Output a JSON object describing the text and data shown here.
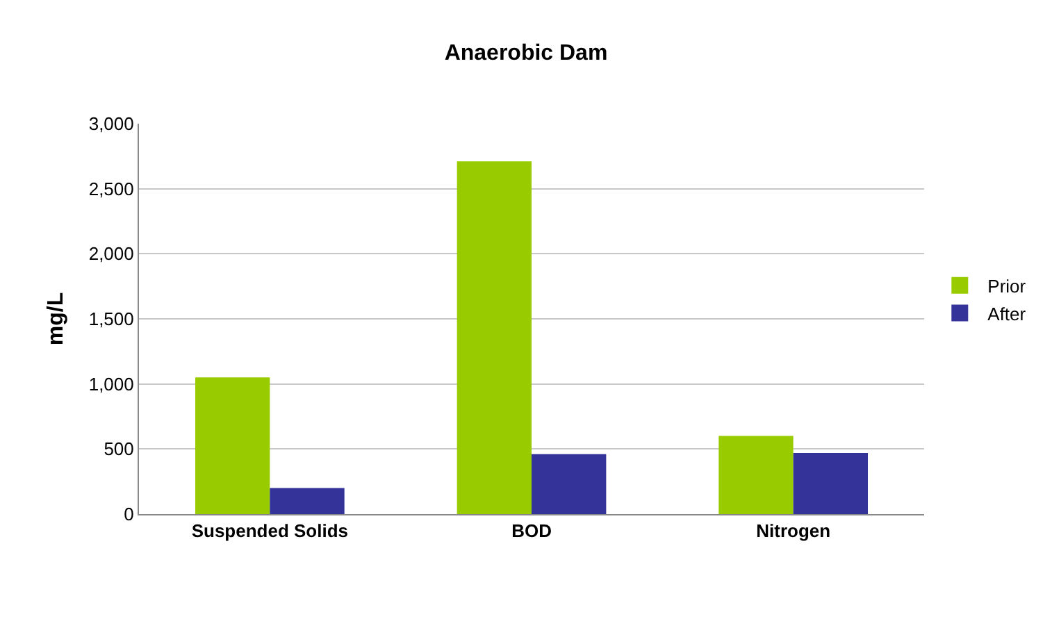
{
  "chart_data": {
    "type": "bar",
    "title": "Anaerobic Dam",
    "ylabel": "mg/L",
    "categories": [
      "Suspended Solids",
      "BOD",
      "Nitrogen"
    ],
    "series": [
      {
        "name": "Prior",
        "color": "#99cc00",
        "values": [
          1050,
          2710,
          600
        ]
      },
      {
        "name": "After",
        "color": "#333399",
        "values": [
          200,
          460,
          470
        ]
      }
    ],
    "ylim": [
      0,
      3000
    ],
    "yticks": [
      {
        "value": 0,
        "label": "0"
      },
      {
        "value": 500,
        "label": "500"
      },
      {
        "value": 1000,
        "label": "1,000"
      },
      {
        "value": 1500,
        "label": "1,500"
      },
      {
        "value": 2000,
        "label": "2,000"
      },
      {
        "value": 2500,
        "label": "2,500"
      },
      {
        "value": 3000,
        "label": "3,000"
      }
    ],
    "grid": "y",
    "legend": "right"
  }
}
